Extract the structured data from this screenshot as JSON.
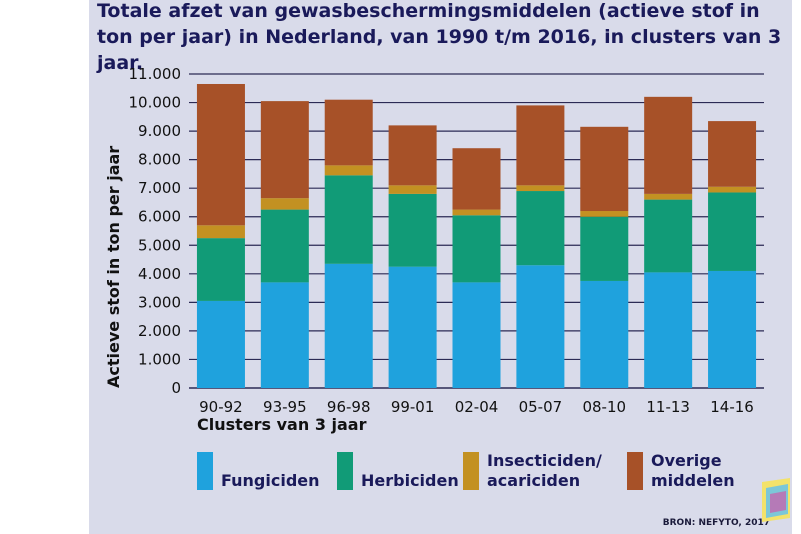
{
  "chart_data": {
    "type": "bar",
    "stacked": true,
    "title": "Totale afzet van gewasbeschermingsmiddelen (actieve stof in ton per jaar) in Nederland, van 1990 t/m 2016, in clusters van 3 jaar.",
    "xlabel": "Clusters van 3 jaar",
    "ylabel": "Actieve stof in ton per jaar",
    "ylim": [
      0,
      11000
    ],
    "yticks": [
      0,
      1000,
      2000,
      3000,
      4000,
      5000,
      6000,
      7000,
      8000,
      9000,
      10000,
      11000
    ],
    "ytick_labels": [
      "0",
      "1.000",
      "2.000",
      "3.000",
      "4.000",
      "5.000",
      "6.000",
      "7.000",
      "8.000",
      "9.000",
      "10.000",
      "11.000"
    ],
    "grid": true,
    "legend_position": "bottom",
    "categories": [
      "90-92",
      "93-95",
      "96-98",
      "99-01",
      "02-04",
      "05-07",
      "08-10",
      "11-13",
      "14-16"
    ],
    "series": [
      {
        "name": "Fungiciden",
        "color": "#1fa2dd",
        "values": [
          3050,
          3700,
          4350,
          4250,
          3700,
          4300,
          3750,
          4050,
          4100
        ]
      },
      {
        "name": "Herbiciden",
        "color": "#119b77",
        "values": [
          2200,
          2550,
          3100,
          2550,
          2350,
          2600,
          2250,
          2550,
          2750
        ]
      },
      {
        "name": "Insecticiden/ acariciden",
        "legend_lines": [
          "Insecticiden/",
          "acariciden"
        ],
        "color": "#c39122",
        "values": [
          450,
          400,
          350,
          300,
          200,
          200,
          200,
          200,
          200
        ]
      },
      {
        "name": "Overige middelen",
        "legend_lines": [
          "Overige",
          "middelen"
        ],
        "color": "#a75128",
        "values": [
          4950,
          3400,
          2300,
          2100,
          2150,
          2800,
          2950,
          3400,
          2300
        ]
      }
    ]
  },
  "source": "BRON: NEFYTO, 2017",
  "colors": {
    "panel_background": "#d9dbea",
    "gridline": "#2b2a55",
    "title_text": "#1a1a5a"
  }
}
